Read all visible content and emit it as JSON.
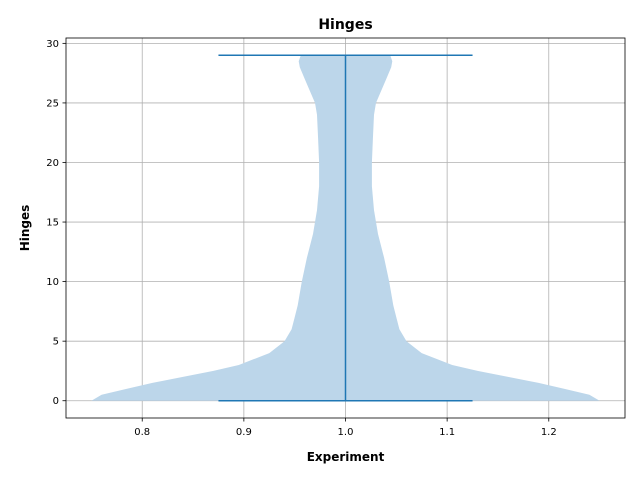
{
  "chart_data": {
    "type": "violin",
    "title": "Hinges",
    "xlabel": "Experiment",
    "ylabel": "Hinges",
    "xlim": [
      0.725,
      1.275
    ],
    "ylim": [
      -1.45,
      30.45
    ],
    "x_ticks": [
      0.8,
      0.9,
      1.0,
      1.1,
      1.2
    ],
    "x_tick_labels": [
      "0.8",
      "0.9",
      "1.0",
      "1.1",
      "1.2"
    ],
    "y_ticks": [
      0,
      5,
      10,
      15,
      20,
      25,
      30
    ],
    "y_tick_labels": [
      "0",
      "5",
      "10",
      "15",
      "20",
      "25",
      "30"
    ],
    "grid": true,
    "series": [
      {
        "position": 1.0,
        "min": 0,
        "max": 29,
        "show_extrema": true,
        "cap_halfwidth": 0.125,
        "body_color": "#bcd6ea",
        "line_color": "#1f77b4",
        "profile": [
          {
            "y": 0.0,
            "halfwidth": 0.25
          },
          {
            "y": 0.5,
            "halfwidth": 0.24
          },
          {
            "y": 1.0,
            "halfwidth": 0.215
          },
          {
            "y": 1.5,
            "halfwidth": 0.19
          },
          {
            "y": 2.0,
            "halfwidth": 0.16
          },
          {
            "y": 2.5,
            "halfwidth": 0.13
          },
          {
            "y": 3.0,
            "halfwidth": 0.105
          },
          {
            "y": 4.0,
            "halfwidth": 0.075
          },
          {
            "y": 5.0,
            "halfwidth": 0.06
          },
          {
            "y": 6.0,
            "halfwidth": 0.053
          },
          {
            "y": 7.0,
            "halfwidth": 0.05
          },
          {
            "y": 8.0,
            "halfwidth": 0.047
          },
          {
            "y": 10.0,
            "halfwidth": 0.043
          },
          {
            "y": 12.0,
            "halfwidth": 0.038
          },
          {
            "y": 14.0,
            "halfwidth": 0.032
          },
          {
            "y": 16.0,
            "halfwidth": 0.028
          },
          {
            "y": 18.0,
            "halfwidth": 0.026
          },
          {
            "y": 20.0,
            "halfwidth": 0.026
          },
          {
            "y": 22.0,
            "halfwidth": 0.027
          },
          {
            "y": 24.0,
            "halfwidth": 0.028
          },
          {
            "y": 25.0,
            "halfwidth": 0.03
          },
          {
            "y": 26.0,
            "halfwidth": 0.035
          },
          {
            "y": 27.0,
            "halfwidth": 0.04
          },
          {
            "y": 28.0,
            "halfwidth": 0.045
          },
          {
            "y": 28.5,
            "halfwidth": 0.046
          },
          {
            "y": 29.0,
            "halfwidth": 0.044
          }
        ]
      }
    ]
  }
}
